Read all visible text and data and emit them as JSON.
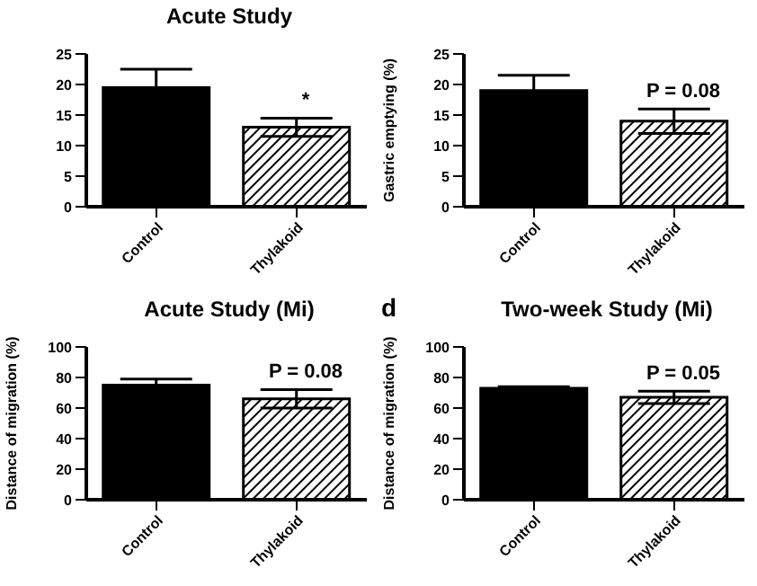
{
  "chart_data": [
    {
      "type": "bar",
      "title": "Acute Study",
      "categories": [
        "Control",
        "Thylakoid"
      ],
      "values": [
        19.5,
        13
      ],
      "errors": [
        3,
        1.5
      ],
      "colors": [
        "#000000",
        "#000000"
      ],
      "ylim": [
        0,
        25
      ],
      "yticks": [
        0,
        5,
        10,
        15,
        20,
        25
      ],
      "grid": false,
      "annotations": [
        "*"
      ]
    },
    {
      "type": "bar",
      "ylabel": "Gastric emptying (%)",
      "categories": [
        "Control",
        "Thylakoid"
      ],
      "values": [
        19,
        14
      ],
      "errors": [
        2.5,
        2
      ],
      "colors": [
        "#000000",
        "#000000"
      ],
      "ylim": [
        0,
        25
      ],
      "yticks": [
        0,
        5,
        10,
        15,
        20,
        25
      ],
      "grid": false,
      "annotations": [
        "P = 0.08"
      ]
    },
    {
      "type": "bar",
      "title": "Acute Study (Mi)",
      "ylabel": "Distance of migration (%)",
      "categories": [
        "Control",
        "Thylakoid"
      ],
      "values": [
        75,
        66
      ],
      "errors": [
        4,
        6
      ],
      "colors": [
        "#000000",
        "#000000"
      ],
      "ylim": [
        0,
        100
      ],
      "yticks": [
        0,
        20,
        40,
        60,
        80,
        100
      ],
      "grid": false,
      "annotations": [
        "P = 0.08"
      ]
    },
    {
      "type": "bar",
      "title": "Two-week Study (Mi)",
      "ylabel": "Distance of migration (%)",
      "categories": [
        "Control",
        "Thylakoid"
      ],
      "values": [
        73,
        67
      ],
      "errors": [
        1,
        4
      ],
      "colors": [
        "#000000",
        "#000000"
      ],
      "ylim": [
        0,
        100
      ],
      "yticks": [
        0,
        20,
        40,
        60,
        80,
        100
      ],
      "grid": false,
      "annotations": [
        "d",
        "P = 0.05"
      ]
    }
  ]
}
